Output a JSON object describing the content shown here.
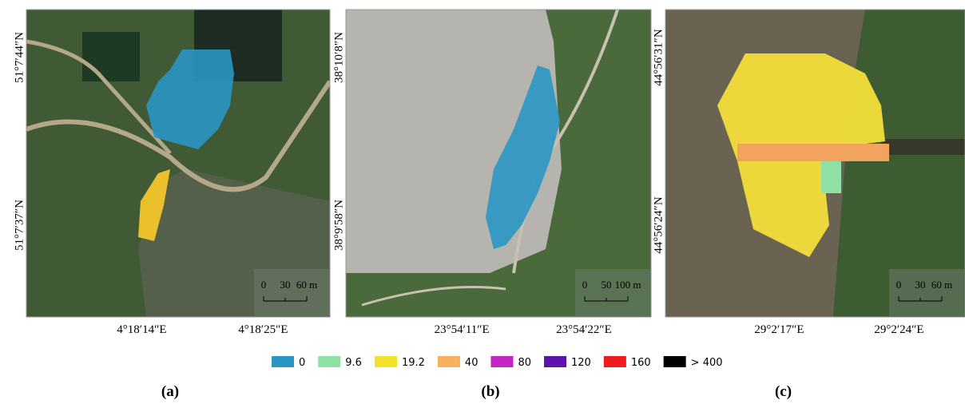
{
  "panels": [
    {
      "caption": "(a)",
      "lat_labels": [
        "51°7′44″N",
        "51°7′37″N"
      ],
      "lon_labels": [
        "4°18′14″E",
        "4°18′25″E"
      ],
      "scale_labels": [
        "0",
        "30",
        "60 m"
      ]
    },
    {
      "caption": "(b)",
      "lat_labels": [
        "38°10′8″N",
        "38°9′58″N"
      ],
      "lon_labels": [
        "23°54′11″E",
        "23°54′22″E"
      ],
      "scale_labels": [
        "0",
        "50",
        "100 m"
      ]
    },
    {
      "caption": "(c)",
      "lat_labels": [
        "44°56′31″N",
        "44°56′24″N"
      ],
      "lon_labels": [
        "29°2′17″E",
        "29°2′24″E"
      ],
      "scale_labels": [
        "0",
        "30",
        "60 m"
      ]
    }
  ],
  "legend": [
    {
      "label": "0",
      "color": "#2a96c4"
    },
    {
      "label": "9.6",
      "color": "#8ee0a4"
    },
    {
      "label": "19.2",
      "color": "#f4e12a"
    },
    {
      "label": "40",
      "color": "#f6b05e"
    },
    {
      "label": "80",
      "color": "#c424c4"
    },
    {
      "label": "120",
      "color": "#5e12ae"
    },
    {
      "label": "160",
      "color": "#ee1c1c"
    },
    {
      "label": "> 400",
      "color": "#000000"
    }
  ]
}
